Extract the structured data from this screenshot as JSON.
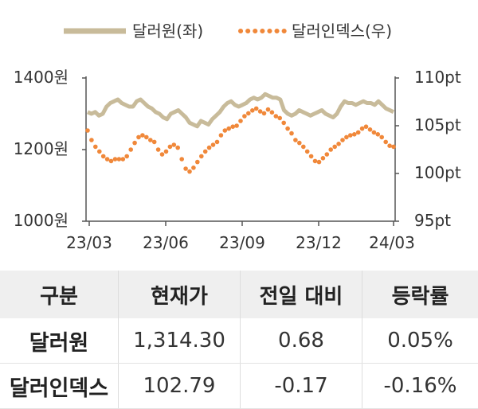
{
  "chart_data": {
    "type": "line",
    "x_tick_labels": [
      "23/03",
      "23/06",
      "23/09",
      "23/12",
      "24/03"
    ],
    "y_left": {
      "ticks": [
        "1400원",
        "1200원",
        "1000원"
      ],
      "ylim": [
        1000,
        1400
      ]
    },
    "y_right": {
      "ticks": [
        "110pt",
        "105pt",
        "100pt",
        "95pt"
      ],
      "ylim": [
        95,
        110
      ]
    },
    "legend": {
      "position": "top"
    },
    "series": [
      {
        "name": "달러원(좌)",
        "axis": "left",
        "style": "solid",
        "color": "#c8bb9a",
        "values": [
          1305,
          1300,
          1305,
          1295,
          1300,
          1320,
          1330,
          1335,
          1340,
          1330,
          1325,
          1320,
          1320,
          1335,
          1340,
          1330,
          1320,
          1315,
          1305,
          1300,
          1290,
          1285,
          1300,
          1305,
          1310,
          1300,
          1290,
          1275,
          1270,
          1265,
          1280,
          1275,
          1270,
          1285,
          1295,
          1305,
          1320,
          1330,
          1335,
          1325,
          1320,
          1325,
          1330,
          1340,
          1345,
          1340,
          1345,
          1355,
          1350,
          1345,
          1345,
          1340,
          1310,
          1300,
          1295,
          1300,
          1310,
          1305,
          1300,
          1295,
          1300,
          1305,
          1310,
          1300,
          1295,
          1290,
          1300,
          1320,
          1335,
          1330,
          1330,
          1325,
          1330,
          1335,
          1330,
          1330,
          1325,
          1335,
          1325,
          1315,
          1310,
          1305
        ]
      },
      {
        "name": "달러인덱스(우)",
        "axis": "right",
        "style": "dotted",
        "color": "#f0883a",
        "values": [
          104.5,
          103.5,
          102.8,
          102.3,
          101.8,
          101.5,
          101.3,
          101.5,
          101.5,
          101.5,
          101.8,
          102.5,
          103.2,
          103.8,
          104,
          103.8,
          103.5,
          103.3,
          102.5,
          102,
          102.3,
          102.8,
          103,
          102.7,
          101.5,
          100.5,
          100.2,
          100.6,
          101.2,
          101.8,
          102.3,
          102.7,
          103,
          103.3,
          104,
          104.5,
          104.7,
          104.9,
          105,
          105.5,
          106,
          106.3,
          106.6,
          106.8,
          106.5,
          106.3,
          106.7,
          106.4,
          106,
          105.8,
          105.3,
          104.7,
          104.2,
          103.5,
          103.2,
          102.8,
          102.3,
          101.8,
          101.3,
          101.2,
          101.6,
          102,
          102.5,
          102.8,
          103.1,
          103.5,
          103.8,
          104,
          104.1,
          104.3,
          104.7,
          104.9,
          104.6,
          104.3,
          104.1,
          103.8,
          103.3,
          102.9,
          102.8
        ]
      }
    ]
  },
  "table": {
    "headers": [
      "구분",
      "현재가",
      "전일 대비",
      "등락률"
    ],
    "rows": [
      [
        "달러원",
        "1,314.30",
        "0.68",
        "0.05%"
      ],
      [
        "달러인덱스",
        "102.79",
        "-0.17",
        "-0.16%"
      ]
    ]
  }
}
